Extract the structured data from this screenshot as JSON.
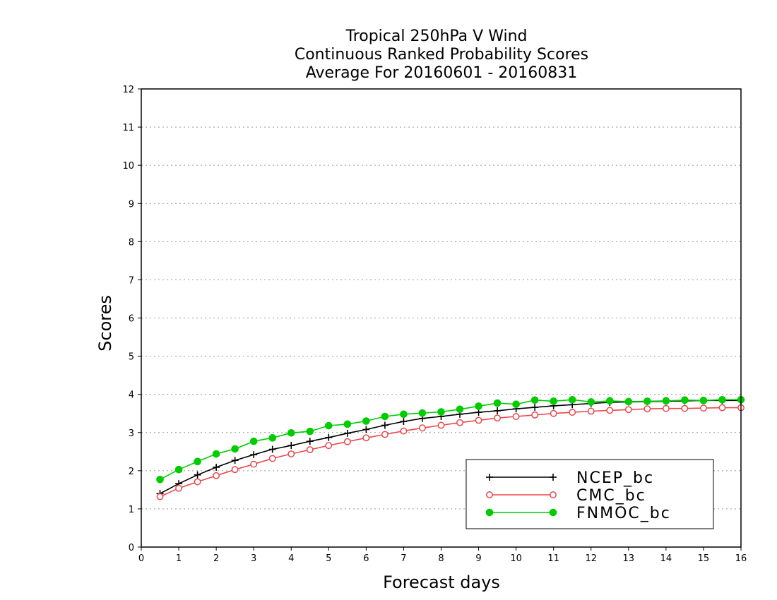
{
  "chart_data": {
    "type": "line",
    "title": [
      "Tropical 250hPa V Wind",
      "Continuous Ranked Probability Scores",
      "Average For 20160601 - 20160831"
    ],
    "xlabel": "Forecast days",
    "ylabel": "Scores",
    "xlim": [
      0,
      16
    ],
    "ylim": [
      0,
      12
    ],
    "xticks": [
      "0",
      "1",
      "2",
      "3",
      "4",
      "5",
      "6",
      "7",
      "8",
      "9",
      "10",
      "11",
      "12",
      "13",
      "14",
      "15",
      "16"
    ],
    "yticks": [
      "0",
      "1",
      "2",
      "3",
      "4",
      "5",
      "6",
      "7",
      "8",
      "9",
      "10",
      "11",
      "12"
    ],
    "grid": "horizontal dotted",
    "legend_position": "bottom-right",
    "x": [
      0.5,
      1,
      1.5,
      2,
      2.5,
      3,
      3.5,
      4,
      4.5,
      5,
      5.5,
      6,
      6.5,
      7,
      7.5,
      8,
      8.5,
      9,
      9.5,
      10,
      10.5,
      11,
      11.5,
      12,
      12.5,
      13,
      13.5,
      14,
      14.5,
      15,
      15.5,
      16
    ],
    "series": [
      {
        "name": "NCEP_bc",
        "color": "#000000",
        "marker": "plus",
        "values": [
          1.4,
          1.66,
          1.89,
          2.09,
          2.27,
          2.42,
          2.56,
          2.66,
          2.77,
          2.87,
          2.98,
          3.08,
          3.19,
          3.29,
          3.37,
          3.42,
          3.48,
          3.53,
          3.57,
          3.62,
          3.66,
          3.7,
          3.73,
          3.76,
          3.79,
          3.8,
          3.81,
          3.82,
          3.83,
          3.84,
          3.84,
          3.84
        ]
      },
      {
        "name": "CMC_bc",
        "color": "#e8474c",
        "marker": "open-circle",
        "values": [
          1.32,
          1.54,
          1.71,
          1.87,
          2.03,
          2.17,
          2.32,
          2.44,
          2.55,
          2.66,
          2.76,
          2.86,
          2.95,
          3.04,
          3.12,
          3.19,
          3.26,
          3.32,
          3.38,
          3.42,
          3.46,
          3.5,
          3.53,
          3.56,
          3.58,
          3.6,
          3.62,
          3.63,
          3.63,
          3.64,
          3.65,
          3.65
        ]
      },
      {
        "name": "FNMOC_bc",
        "color": "#00cc00",
        "marker": "filled-circle",
        "values": [
          1.77,
          2.03,
          2.24,
          2.44,
          2.57,
          2.77,
          2.86,
          2.99,
          3.03,
          3.18,
          3.22,
          3.3,
          3.42,
          3.48,
          3.51,
          3.54,
          3.61,
          3.69,
          3.77,
          3.74,
          3.85,
          3.82,
          3.86,
          3.8,
          3.83,
          3.81,
          3.82,
          3.83,
          3.85,
          3.84,
          3.86,
          3.86
        ]
      }
    ]
  }
}
